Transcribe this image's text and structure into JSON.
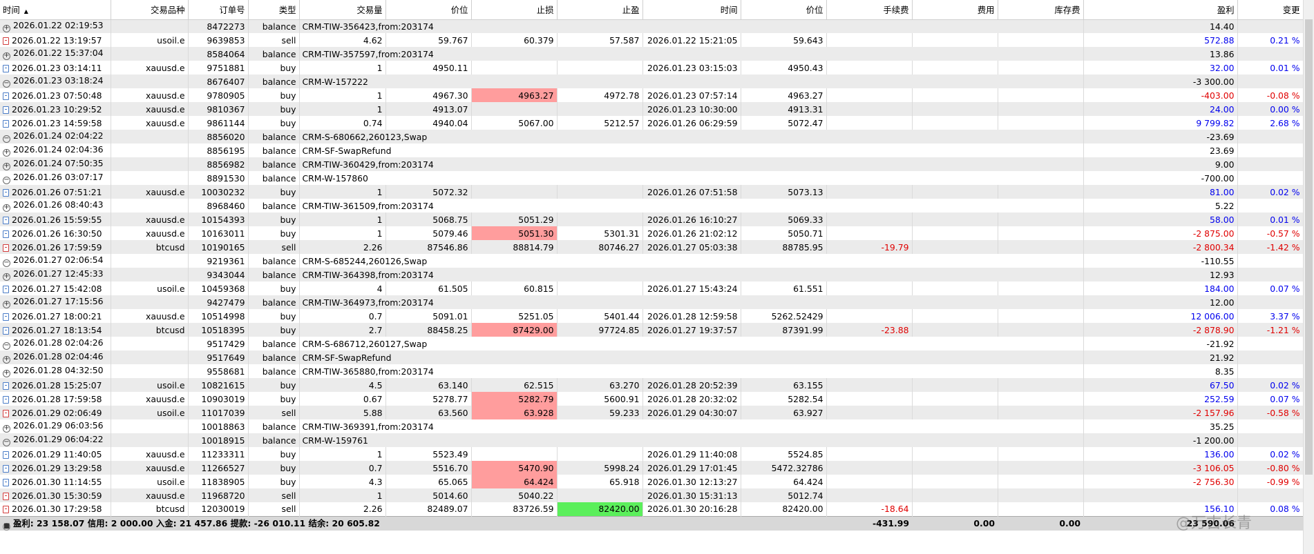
{
  "columns": [
    "时间",
    "交易品种",
    "订单号",
    "类型",
    "交易量",
    "价位",
    "止损",
    "止盈",
    "时间",
    "价位",
    "手续费",
    "费用",
    "库存费",
    "盈利",
    "变更"
  ],
  "rows": [
    {
      "icon": "plus",
      "time": "2026.01.22 02:19:53",
      "symbol": "",
      "order": "8472273",
      "type": "balance",
      "comment": "CRM-TIW-356423,from:203174",
      "profit": "14.40"
    },
    {
      "icon": "sell",
      "time": "2026.01.22 13:19:57",
      "symbol": "usoil.e",
      "order": "9639853",
      "type": "sell",
      "volume": "4.62",
      "price": "59.767",
      "sl": "60.379",
      "tp": "57.587",
      "ctime": "2026.01.22 15:21:05",
      "cprice": "59.643",
      "fee": "",
      "cost": "",
      "swap": "",
      "profit": "572.88",
      "profit_color": "blue",
      "change": "0.21 %",
      "change_color": "blue"
    },
    {
      "icon": "plus",
      "time": "2026.01.22 15:37:04",
      "symbol": "",
      "order": "8584064",
      "type": "balance",
      "comment": "CRM-TIW-357597,from:203174",
      "profit": "13.86"
    },
    {
      "icon": "buy",
      "time": "2026.01.23 03:14:11",
      "symbol": "xauusd.e",
      "order": "9751881",
      "type": "buy",
      "volume": "1",
      "price": "4950.11",
      "sl": "",
      "tp": "",
      "ctime": "2026.01.23 03:15:03",
      "cprice": "4950.43",
      "fee": "",
      "cost": "",
      "swap": "",
      "profit": "32.00",
      "profit_color": "blue",
      "change": "0.01 %",
      "change_color": "blue"
    },
    {
      "icon": "minus",
      "time": "2026.01.23 03:18:24",
      "symbol": "",
      "order": "8676407",
      "type": "balance",
      "comment": "CRM-W-157222",
      "profit": "-3 300.00"
    },
    {
      "icon": "buy",
      "time": "2026.01.23 07:50:48",
      "symbol": "xauusd.e",
      "order": "9780905",
      "type": "buy",
      "volume": "1",
      "price": "4967.30",
      "sl": "4963.27",
      "sl_hl": "red",
      "tp": "4972.78",
      "ctime": "2026.01.23 07:57:14",
      "cprice": "4963.27",
      "fee": "",
      "cost": "",
      "swap": "",
      "profit": "-403.00",
      "profit_color": "red",
      "change": "-0.08 %",
      "change_color": "red"
    },
    {
      "icon": "buy",
      "time": "2026.01.23 10:29:52",
      "symbol": "xauusd.e",
      "order": "9810367",
      "type": "buy",
      "volume": "1",
      "price": "4913.07",
      "sl": "",
      "tp": "",
      "ctime": "2026.01.23 10:30:00",
      "cprice": "4913.31",
      "fee": "",
      "cost": "",
      "swap": "",
      "profit": "24.00",
      "profit_color": "blue",
      "change": "0.00 %",
      "change_color": "blue"
    },
    {
      "icon": "buy",
      "time": "2026.01.23 14:59:58",
      "symbol": "xauusd.e",
      "order": "9861144",
      "type": "buy",
      "volume": "0.74",
      "price": "4940.04",
      "sl": "5067.00",
      "tp": "5212.57",
      "ctime": "2026.01.26 06:29:59",
      "cprice": "5072.47",
      "fee": "",
      "cost": "",
      "swap": "",
      "profit": "9 799.82",
      "profit_color": "blue",
      "change": "2.68 %",
      "change_color": "blue"
    },
    {
      "icon": "minus",
      "time": "2026.01.24 02:04:22",
      "symbol": "",
      "order": "8856020",
      "type": "balance",
      "comment": "CRM-S-680662,260123,Swap",
      "profit": "-23.69"
    },
    {
      "icon": "plus",
      "time": "2026.01.24 02:04:36",
      "symbol": "",
      "order": "8856195",
      "type": "balance",
      "comment": "CRM-SF-SwapRefund",
      "profit": "23.69"
    },
    {
      "icon": "plus",
      "time": "2026.01.24 07:50:35",
      "symbol": "",
      "order": "8856982",
      "type": "balance",
      "comment": "CRM-TIW-360429,from:203174",
      "profit": "9.00"
    },
    {
      "icon": "minus",
      "time": "2026.01.26 03:07:17",
      "symbol": "",
      "order": "8891530",
      "type": "balance",
      "comment": "CRM-W-157860",
      "profit": "-700.00"
    },
    {
      "icon": "buy",
      "time": "2026.01.26 07:51:21",
      "symbol": "xauusd.e",
      "order": "10030232",
      "type": "buy",
      "volume": "1",
      "price": "5072.32",
      "sl": "",
      "tp": "",
      "ctime": "2026.01.26 07:51:58",
      "cprice": "5073.13",
      "fee": "",
      "cost": "",
      "swap": "",
      "profit": "81.00",
      "profit_color": "blue",
      "change": "0.02 %",
      "change_color": "blue"
    },
    {
      "icon": "plus",
      "time": "2026.01.26 08:40:43",
      "symbol": "",
      "order": "8968460",
      "type": "balance",
      "comment": "CRM-TIW-361509,from:203174",
      "profit": "5.22"
    },
    {
      "icon": "buy",
      "time": "2026.01.26 15:59:55",
      "symbol": "xauusd.e",
      "order": "10154393",
      "type": "buy",
      "volume": "1",
      "price": "5068.75",
      "sl": "5051.29",
      "tp": "",
      "ctime": "2026.01.26 16:10:27",
      "cprice": "5069.33",
      "fee": "",
      "cost": "",
      "swap": "",
      "profit": "58.00",
      "profit_color": "blue",
      "change": "0.01 %",
      "change_color": "blue"
    },
    {
      "icon": "buy",
      "time": "2026.01.26 16:30:50",
      "symbol": "xauusd.e",
      "order": "10163011",
      "type": "buy",
      "volume": "1",
      "price": "5079.46",
      "sl": "5051.30",
      "sl_hl": "red",
      "tp": "5301.31",
      "ctime": "2026.01.26 21:02:12",
      "cprice": "5050.71",
      "fee": "",
      "cost": "",
      "swap": "",
      "profit": "-2 875.00",
      "profit_color": "red",
      "change": "-0.57 %",
      "change_color": "red"
    },
    {
      "icon": "sell",
      "time": "2026.01.26 17:59:59",
      "symbol": "btcusd",
      "order": "10190165",
      "type": "sell",
      "volume": "2.26",
      "price": "87546.86",
      "sl": "88814.79",
      "tp": "80746.27",
      "ctime": "2026.01.27 05:03:38",
      "cprice": "88785.95",
      "fee": "-19.79",
      "cost": "",
      "swap": "",
      "profit": "-2 800.34",
      "profit_color": "red",
      "change": "-1.42 %",
      "change_color": "red"
    },
    {
      "icon": "minus",
      "time": "2026.01.27 02:06:54",
      "symbol": "",
      "order": "9219361",
      "type": "balance",
      "comment": "CRM-S-685244,260126,Swap",
      "profit": "-110.55"
    },
    {
      "icon": "plus",
      "time": "2026.01.27 12:45:33",
      "symbol": "",
      "order": "9343044",
      "type": "balance",
      "comment": "CRM-TIW-364398,from:203174",
      "profit": "12.93"
    },
    {
      "icon": "buy",
      "time": "2026.01.27 15:42:08",
      "symbol": "usoil.e",
      "order": "10459368",
      "type": "buy",
      "volume": "4",
      "price": "61.505",
      "sl": "60.815",
      "tp": "",
      "ctime": "2026.01.27 15:43:24",
      "cprice": "61.551",
      "fee": "",
      "cost": "",
      "swap": "",
      "profit": "184.00",
      "profit_color": "blue",
      "change": "0.07 %",
      "change_color": "blue"
    },
    {
      "icon": "plus",
      "time": "2026.01.27 17:15:56",
      "symbol": "",
      "order": "9427479",
      "type": "balance",
      "comment": "CRM-TIW-364973,from:203174",
      "profit": "12.00"
    },
    {
      "icon": "buy",
      "time": "2026.01.27 18:00:21",
      "symbol": "xauusd.e",
      "order": "10514998",
      "type": "buy",
      "volume": "0.7",
      "price": "5091.01",
      "sl": "5251.05",
      "tp": "5401.44",
      "ctime": "2026.01.28 12:59:58",
      "cprice": "5262.52429",
      "fee": "",
      "cost": "",
      "swap": "",
      "profit": "12 006.00",
      "profit_color": "blue",
      "change": "3.37 %",
      "change_color": "blue"
    },
    {
      "icon": "buy",
      "time": "2026.01.27 18:13:54",
      "symbol": "btcusd",
      "order": "10518395",
      "type": "buy",
      "volume": "2.7",
      "price": "88458.25",
      "sl": "87429.00",
      "sl_hl": "red",
      "tp": "97724.85",
      "ctime": "2026.01.27 19:37:57",
      "cprice": "87391.99",
      "fee": "-23.88",
      "cost": "",
      "swap": "",
      "profit": "-2 878.90",
      "profit_color": "red",
      "change": "-1.21 %",
      "change_color": "red"
    },
    {
      "icon": "minus",
      "time": "2026.01.28 02:04:26",
      "symbol": "",
      "order": "9517429",
      "type": "balance",
      "comment": "CRM-S-686712,260127,Swap",
      "profit": "-21.92"
    },
    {
      "icon": "plus",
      "time": "2026.01.28 02:04:46",
      "symbol": "",
      "order": "9517649",
      "type": "balance",
      "comment": "CRM-SF-SwapRefund",
      "profit": "21.92"
    },
    {
      "icon": "plus",
      "time": "2026.01.28 04:32:50",
      "symbol": "",
      "order": "9558681",
      "type": "balance",
      "comment": "CRM-TIW-365880,from:203174",
      "profit": "8.35"
    },
    {
      "icon": "buy",
      "time": "2026.01.28 15:25:07",
      "symbol": "usoil.e",
      "order": "10821615",
      "type": "buy",
      "volume": "4.5",
      "price": "63.140",
      "sl": "62.515",
      "tp": "63.270",
      "ctime": "2026.01.28 20:52:39",
      "cprice": "63.155",
      "fee": "",
      "cost": "",
      "swap": "",
      "profit": "67.50",
      "profit_color": "blue",
      "change": "0.02 %",
      "change_color": "blue"
    },
    {
      "icon": "buy",
      "time": "2026.01.28 17:59:58",
      "symbol": "xauusd.e",
      "order": "10903019",
      "type": "buy",
      "volume": "0.67",
      "price": "5278.77",
      "sl": "5282.79",
      "sl_hl": "red",
      "tp": "5600.91",
      "ctime": "2026.01.28 20:32:02",
      "cprice": "5282.54",
      "fee": "",
      "cost": "",
      "swap": "",
      "profit": "252.59",
      "profit_color": "blue",
      "change": "0.07 %",
      "change_color": "blue"
    },
    {
      "icon": "sell",
      "time": "2026.01.29 02:06:49",
      "symbol": "usoil.e",
      "order": "11017039",
      "type": "sell",
      "volume": "5.88",
      "price": "63.560",
      "sl": "63.928",
      "sl_hl": "red",
      "tp": "59.233",
      "ctime": "2026.01.29 04:30:07",
      "cprice": "63.927",
      "fee": "",
      "cost": "",
      "swap": "",
      "profit": "-2 157.96",
      "profit_color": "red",
      "change": "-0.58 %",
      "change_color": "red"
    },
    {
      "icon": "plus",
      "time": "2026.01.29 06:03:56",
      "symbol": "",
      "order": "10018863",
      "type": "balance",
      "comment": "CRM-TIW-369391,from:203174",
      "profit": "35.25"
    },
    {
      "icon": "minus",
      "time": "2026.01.29 06:04:22",
      "symbol": "",
      "order": "10018915",
      "type": "balance",
      "comment": "CRM-W-159761",
      "profit": "-1 200.00"
    },
    {
      "icon": "buy",
      "time": "2026.01.29 11:40:05",
      "symbol": "xauusd.e",
      "order": "11233311",
      "type": "buy",
      "volume": "1",
      "price": "5523.49",
      "sl": "",
      "tp": "",
      "ctime": "2026.01.29 11:40:08",
      "cprice": "5524.85",
      "fee": "",
      "cost": "",
      "swap": "",
      "profit": "136.00",
      "profit_color": "blue",
      "change": "0.02 %",
      "change_color": "blue"
    },
    {
      "icon": "buy",
      "time": "2026.01.29 13:29:58",
      "symbol": "xauusd.e",
      "order": "11266527",
      "type": "buy",
      "volume": "0.7",
      "price": "5516.70",
      "sl": "5470.90",
      "sl_hl": "red",
      "tp": "5998.24",
      "ctime": "2026.01.29 17:01:45",
      "cprice": "5472.32786",
      "fee": "",
      "cost": "",
      "swap": "",
      "profit": "-3 106.05",
      "profit_color": "red",
      "change": "-0.80 %",
      "change_color": "red"
    },
    {
      "icon": "buy",
      "time": "2026.01.30 11:14:55",
      "symbol": "usoil.e",
      "order": "11838905",
      "type": "buy",
      "volume": "4.3",
      "price": "65.065",
      "sl": "64.424",
      "sl_hl": "red",
      "tp": "65.918",
      "ctime": "2026.01.30 12:13:27",
      "cprice": "64.424",
      "fee": "",
      "cost": "",
      "swap": "",
      "profit": "-2 756.30",
      "profit_color": "red",
      "change": "-0.99 %",
      "change_color": "red"
    },
    {
      "icon": "sell",
      "time": "2026.01.30 15:30:59",
      "symbol": "xauusd.e",
      "order": "11968720",
      "type": "sell",
      "volume": "1",
      "price": "5014.60",
      "sl": "5040.22",
      "tp": "",
      "ctime": "2026.01.30 15:31:13",
      "cprice": "5012.74",
      "fee": "",
      "cost": "",
      "swap": "",
      "profit": "",
      "profit_color": "blue",
      "change": "",
      "change_color": "blue"
    },
    {
      "icon": "sell",
      "time": "2026.01.30 17:29:58",
      "symbol": "btcusd",
      "order": "12030019",
      "type": "sell",
      "volume": "2.26",
      "price": "82489.07",
      "sl": "83726.59",
      "tp": "82420.00",
      "tp_hl": "green",
      "ctime": "2026.01.30 20:16:28",
      "cprice": "82420.00",
      "fee": "-18.64",
      "cost": "",
      "swap": "",
      "profit": "156.10",
      "profit_color": "blue",
      "change": "0.08 %",
      "change_color": "blue"
    }
  ],
  "summary": {
    "text": "盈利: 23 158.07  信用: 2 000.00  入金: 21 457.86  提款: -26 010.11  结余: 20 605.82",
    "fee": "-431.99",
    "cost": "0.00",
    "swap": "0.00",
    "profit": "23 590.06"
  },
  "watermark": "@万古长青",
  "colors": {
    "blue": "#0000ee",
    "red": "#e00000",
    "sl_highlight": "#ff9d9d",
    "tp_highlight": "#5bef5b"
  }
}
